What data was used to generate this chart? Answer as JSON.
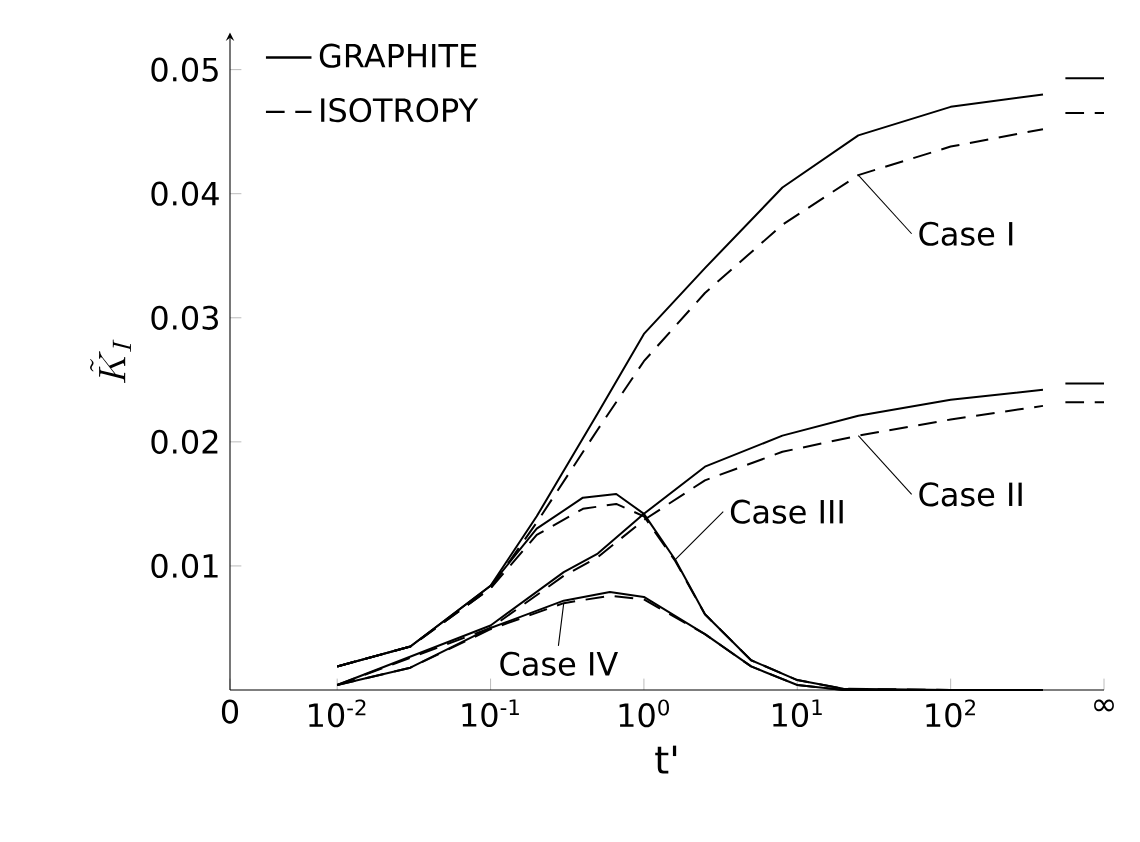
{
  "chart_data": {
    "type": "line",
    "xlabel": "t'",
    "ylabel": "\\tilde{K}_{I}",
    "log": "x",
    "grid": false,
    "legend": "top left",
    "marker": "none",
    "xlim": [
      0.002,
      1000
    ],
    "ylim": [
      0,
      0.053
    ],
    "xticks": [
      {
        "value": 0.002,
        "label": "0"
      },
      {
        "value": 0.01,
        "label": "10$^{-2}$"
      },
      {
        "value": 0.1,
        "label": "10$^{-1}$"
      },
      {
        "value": 1,
        "label": "10$^{0}$"
      },
      {
        "value": 10,
        "label": "10$^{1}$"
      },
      {
        "value": 100,
        "label": "10$^{2}$"
      },
      {
        "value": 1000,
        "label": "∞"
      }
    ],
    "yticks": [
      0.01,
      0.02,
      0.03,
      0.04,
      0.05
    ],
    "series": [
      {
        "name": "GRAPHITE",
        "color": "#000000",
        "line_style": "solid",
        "x": [
          0.01,
          0.03,
          0.1,
          0.2,
          0.5,
          1,
          2.5,
          8,
          25,
          100,
          400,
          470,
          560,
          1000
        ],
        "values": [
          0.0019,
          0.0035,
          0.0084,
          0.014,
          0.0223,
          0.0287,
          0.034,
          0.0405,
          0.0447,
          0.047,
          0.048,
          null,
          0.0493,
          0.0493
        ]
      },
      {
        "name": "ISOTROPY",
        "color": "#000000",
        "line_style": "dashed",
        "x": [
          0.01,
          0.03,
          0.1,
          0.2,
          0.5,
          1,
          2.5,
          8,
          25,
          100,
          400,
          470,
          560,
          1000
        ],
        "values": [
          0.0019,
          0.0035,
          0.0082,
          0.0135,
          0.021,
          0.0265,
          0.032,
          0.0375,
          0.0415,
          0.0438,
          0.0452,
          null,
          0.0465,
          0.0465
        ]
      },
      {
        "color": "#000000",
        "line_style": "solid",
        "x": [
          0.01,
          0.1,
          0.3,
          0.5,
          1,
          2.5,
          8,
          25,
          100,
          400,
          470,
          560,
          1000
        ],
        "values": [
          0.0004,
          0.0052,
          0.0095,
          0.011,
          0.0142,
          0.018,
          0.0205,
          0.0221,
          0.0234,
          0.0242,
          null,
          0.0247,
          0.0247
        ]
      },
      {
        "color": "#000000",
        "line_style": "dashed",
        "x": [
          0.01,
          0.1,
          0.3,
          0.5,
          1,
          2.5,
          8,
          25,
          100,
          400,
          470,
          560,
          1000
        ],
        "values": [
          0.0004,
          0.005,
          0.0092,
          0.0107,
          0.0137,
          0.0169,
          0.0192,
          0.0205,
          0.0218,
          0.0229,
          null,
          0.0232,
          0.0232
        ]
      },
      {
        "color": "#000000",
        "line_style": "solid",
        "x": [
          0.01,
          0.03,
          0.1,
          0.2,
          0.4,
          0.66,
          1,
          1.6,
          2.5,
          5,
          10,
          20,
          100,
          400
        ],
        "values": [
          0.0019,
          0.0035,
          0.0084,
          0.013,
          0.0155,
          0.0158,
          0.0142,
          0.0105,
          0.0061,
          0.0024,
          0.0008,
          0.0001,
          0,
          0
        ]
      },
      {
        "color": "#000000",
        "line_style": "dashed",
        "x": [
          0.01,
          0.03,
          0.1,
          0.2,
          0.4,
          0.66,
          1,
          1.6,
          2.5,
          5,
          10,
          20,
          100,
          400
        ],
        "values": [
          0.0019,
          0.0035,
          0.0082,
          0.0125,
          0.0146,
          0.015,
          0.014,
          0.0104,
          0.0061,
          0.0024,
          0.0008,
          0.0001,
          0,
          0
        ]
      },
      {
        "color": "#000000",
        "line_style": "solid",
        "x": [
          0.01,
          0.03,
          0.1,
          0.3,
          0.6,
          1,
          2.5,
          5,
          10,
          20,
          100,
          400
        ],
        "values": [
          0.0004,
          0.0018,
          0.005,
          0.0072,
          0.0079,
          0.0075,
          0.0045,
          0.0019,
          0.0004,
          0,
          0,
          0
        ]
      },
      {
        "color": "#000000",
        "line_style": "dashed",
        "x": [
          0.01,
          0.03,
          0.1,
          0.3,
          0.6,
          1,
          2.5,
          5,
          10,
          20,
          100,
          400
        ],
        "values": [
          0.0004,
          0.0018,
          0.0049,
          0.007,
          0.0076,
          0.0073,
          0.0045,
          0.0019,
          0.0004,
          0,
          0,
          0
        ]
      }
    ],
    "annotations": [
      {
        "text": "Case I",
        "x": 25,
        "y": 0.0415
      },
      {
        "text": "Case II",
        "x": 25,
        "y": 0.0205
      },
      {
        "text": "Case III",
        "x": 1.6,
        "y": 0.0105
      },
      {
        "text": "Case IV",
        "x": 0.3,
        "y": 0.007
      }
    ]
  }
}
